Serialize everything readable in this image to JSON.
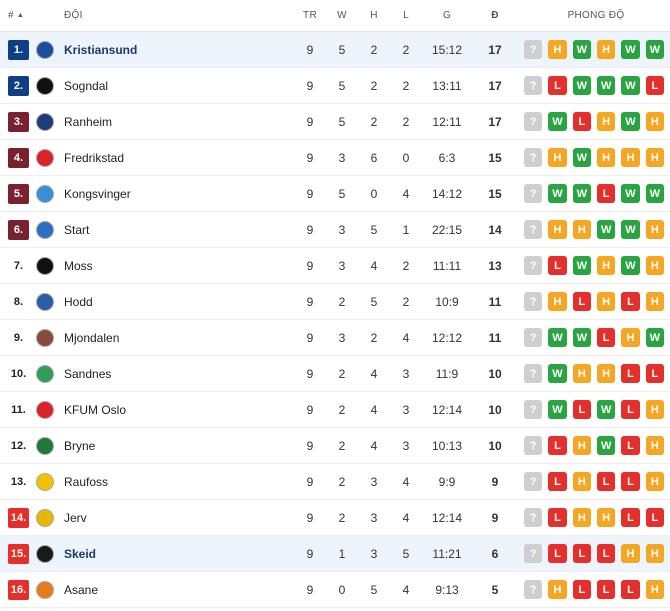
{
  "header": {
    "rank": "#",
    "sort_arrow": "▲",
    "team": "ĐỘI",
    "played": "TR",
    "won": "W",
    "drawn": "H",
    "lost": "L",
    "goals": "G",
    "points": "Đ",
    "form": "PHONG ĐỘ"
  },
  "colors": {
    "promotion": "#0e3f86",
    "playoff": "#7a2130",
    "relegation": "#e42f2b",
    "win": "#2aa441",
    "draw": "#f5a623",
    "loss": "#e3302c",
    "unknown": "#cfcfcf",
    "highlight_row": "#eef4fb"
  },
  "rows": [
    {
      "rank": "1.",
      "zone": "promotion",
      "team": "Kristiansund",
      "logo": "kristiansund-crest",
      "logo_color": "#1b4f9c",
      "played": "9",
      "won": "5",
      "drawn": "2",
      "lost": "2",
      "goals": "15:12",
      "points": "17",
      "highlight": true,
      "form": [
        "?",
        "H",
        "W",
        "H",
        "W",
        "W"
      ]
    },
    {
      "rank": "2.",
      "zone": "promotion",
      "team": "Sogndal",
      "logo": "sogndal-crest",
      "logo_color": "#111111",
      "played": "9",
      "won": "5",
      "drawn": "2",
      "lost": "2",
      "goals": "13:11",
      "points": "17",
      "highlight": false,
      "form": [
        "?",
        "L",
        "W",
        "W",
        "W",
        "L"
      ]
    },
    {
      "rank": "3.",
      "zone": "playoff",
      "team": "Ranheim",
      "logo": "ranheim-crest",
      "logo_color": "#1e3c78",
      "played": "9",
      "won": "5",
      "drawn": "2",
      "lost": "2",
      "goals": "12:11",
      "points": "17",
      "highlight": false,
      "form": [
        "?",
        "W",
        "L",
        "H",
        "W",
        "H"
      ]
    },
    {
      "rank": "4.",
      "zone": "playoff",
      "team": "Fredrikstad",
      "logo": "fredrikstad-crest",
      "logo_color": "#d8232a",
      "played": "9",
      "won": "3",
      "drawn": "6",
      "lost": "0",
      "goals": "6:3",
      "points": "15",
      "highlight": false,
      "form": [
        "?",
        "H",
        "W",
        "H",
        "H",
        "H"
      ]
    },
    {
      "rank": "5.",
      "zone": "playoff",
      "team": "Kongsvinger",
      "logo": "kongsvinger-crest",
      "logo_color": "#3b8ed8",
      "played": "9",
      "won": "5",
      "drawn": "0",
      "lost": "4",
      "goals": "14:12",
      "points": "15",
      "highlight": false,
      "form": [
        "?",
        "W",
        "W",
        "L",
        "W",
        "W"
      ]
    },
    {
      "rank": "6.",
      "zone": "playoff",
      "team": "Start",
      "logo": "start-crest",
      "logo_color": "#2b6fc2",
      "played": "9",
      "won": "3",
      "drawn": "5",
      "lost": "1",
      "goals": "22:15",
      "points": "14",
      "highlight": false,
      "form": [
        "?",
        "H",
        "H",
        "W",
        "W",
        "H"
      ]
    },
    {
      "rank": "7.",
      "zone": "none",
      "team": "Moss",
      "logo": "moss-crest",
      "logo_color": "#111111",
      "played": "9",
      "won": "3",
      "drawn": "4",
      "lost": "2",
      "goals": "11:11",
      "points": "13",
      "highlight": false,
      "form": [
        "?",
        "L",
        "W",
        "H",
        "W",
        "H"
      ]
    },
    {
      "rank": "8.",
      "zone": "none",
      "team": "Hodd",
      "logo": "hodd-crest",
      "logo_color": "#2a5ea8",
      "played": "9",
      "won": "2",
      "drawn": "5",
      "lost": "2",
      "goals": "10:9",
      "points": "11",
      "highlight": false,
      "form": [
        "?",
        "H",
        "L",
        "H",
        "L",
        "H"
      ]
    },
    {
      "rank": "9.",
      "zone": "none",
      "team": "Mjondalen",
      "logo": "mjondalen-crest",
      "logo_color": "#8a4a3a",
      "played": "9",
      "won": "3",
      "drawn": "2",
      "lost": "4",
      "goals": "12:12",
      "points": "11",
      "highlight": false,
      "form": [
        "?",
        "W",
        "W",
        "L",
        "H",
        "W"
      ]
    },
    {
      "rank": "10.",
      "zone": "none",
      "team": "Sandnes",
      "logo": "sandnes-crest",
      "logo_color": "#2f9e5a",
      "played": "9",
      "won": "2",
      "drawn": "4",
      "lost": "3",
      "goals": "11:9",
      "points": "10",
      "highlight": false,
      "form": [
        "?",
        "W",
        "H",
        "H",
        "L",
        "L"
      ]
    },
    {
      "rank": "11.",
      "zone": "none",
      "team": "KFUM Oslo",
      "logo": "kfum-crest",
      "logo_color": "#d8232a",
      "played": "9",
      "won": "2",
      "drawn": "4",
      "lost": "3",
      "goals": "12:14",
      "points": "10",
      "highlight": false,
      "form": [
        "?",
        "W",
        "L",
        "W",
        "L",
        "H"
      ]
    },
    {
      "rank": "12.",
      "zone": "none",
      "team": "Bryne",
      "logo": "bryne-crest",
      "logo_color": "#1f7a3a",
      "played": "9",
      "won": "2",
      "drawn": "4",
      "lost": "3",
      "goals": "10:13",
      "points": "10",
      "highlight": false,
      "form": [
        "?",
        "L",
        "H",
        "W",
        "L",
        "H"
      ]
    },
    {
      "rank": "13.",
      "zone": "none",
      "team": "Raufoss",
      "logo": "raufoss-crest",
      "logo_color": "#f2c200",
      "played": "9",
      "won": "2",
      "drawn": "3",
      "lost": "4",
      "goals": "9:9",
      "points": "9",
      "highlight": false,
      "form": [
        "?",
        "L",
        "H",
        "L",
        "L",
        "H"
      ]
    },
    {
      "rank": "14.",
      "zone": "relegation",
      "team": "Jerv",
      "logo": "jerv-crest",
      "logo_color": "#e6b800",
      "played": "9",
      "won": "2",
      "drawn": "3",
      "lost": "4",
      "goals": "12:14",
      "points": "9",
      "highlight": false,
      "form": [
        "?",
        "L",
        "H",
        "H",
        "L",
        "L"
      ]
    },
    {
      "rank": "15.",
      "zone": "relegation",
      "team": "Skeid",
      "logo": "skeid-crest",
      "logo_color": "#1a1a1a",
      "played": "9",
      "won": "1",
      "drawn": "3",
      "lost": "5",
      "goals": "11:21",
      "points": "6",
      "highlight": true,
      "form": [
        "?",
        "L",
        "L",
        "L",
        "H",
        "H"
      ]
    },
    {
      "rank": "16.",
      "zone": "relegation",
      "team": "Asane",
      "logo": "asane-crest",
      "logo_color": "#e87a1e",
      "played": "9",
      "won": "0",
      "drawn": "5",
      "lost": "4",
      "goals": "9:13",
      "points": "5",
      "highlight": false,
      "form": [
        "?",
        "H",
        "L",
        "L",
        "L",
        "H"
      ]
    }
  ]
}
